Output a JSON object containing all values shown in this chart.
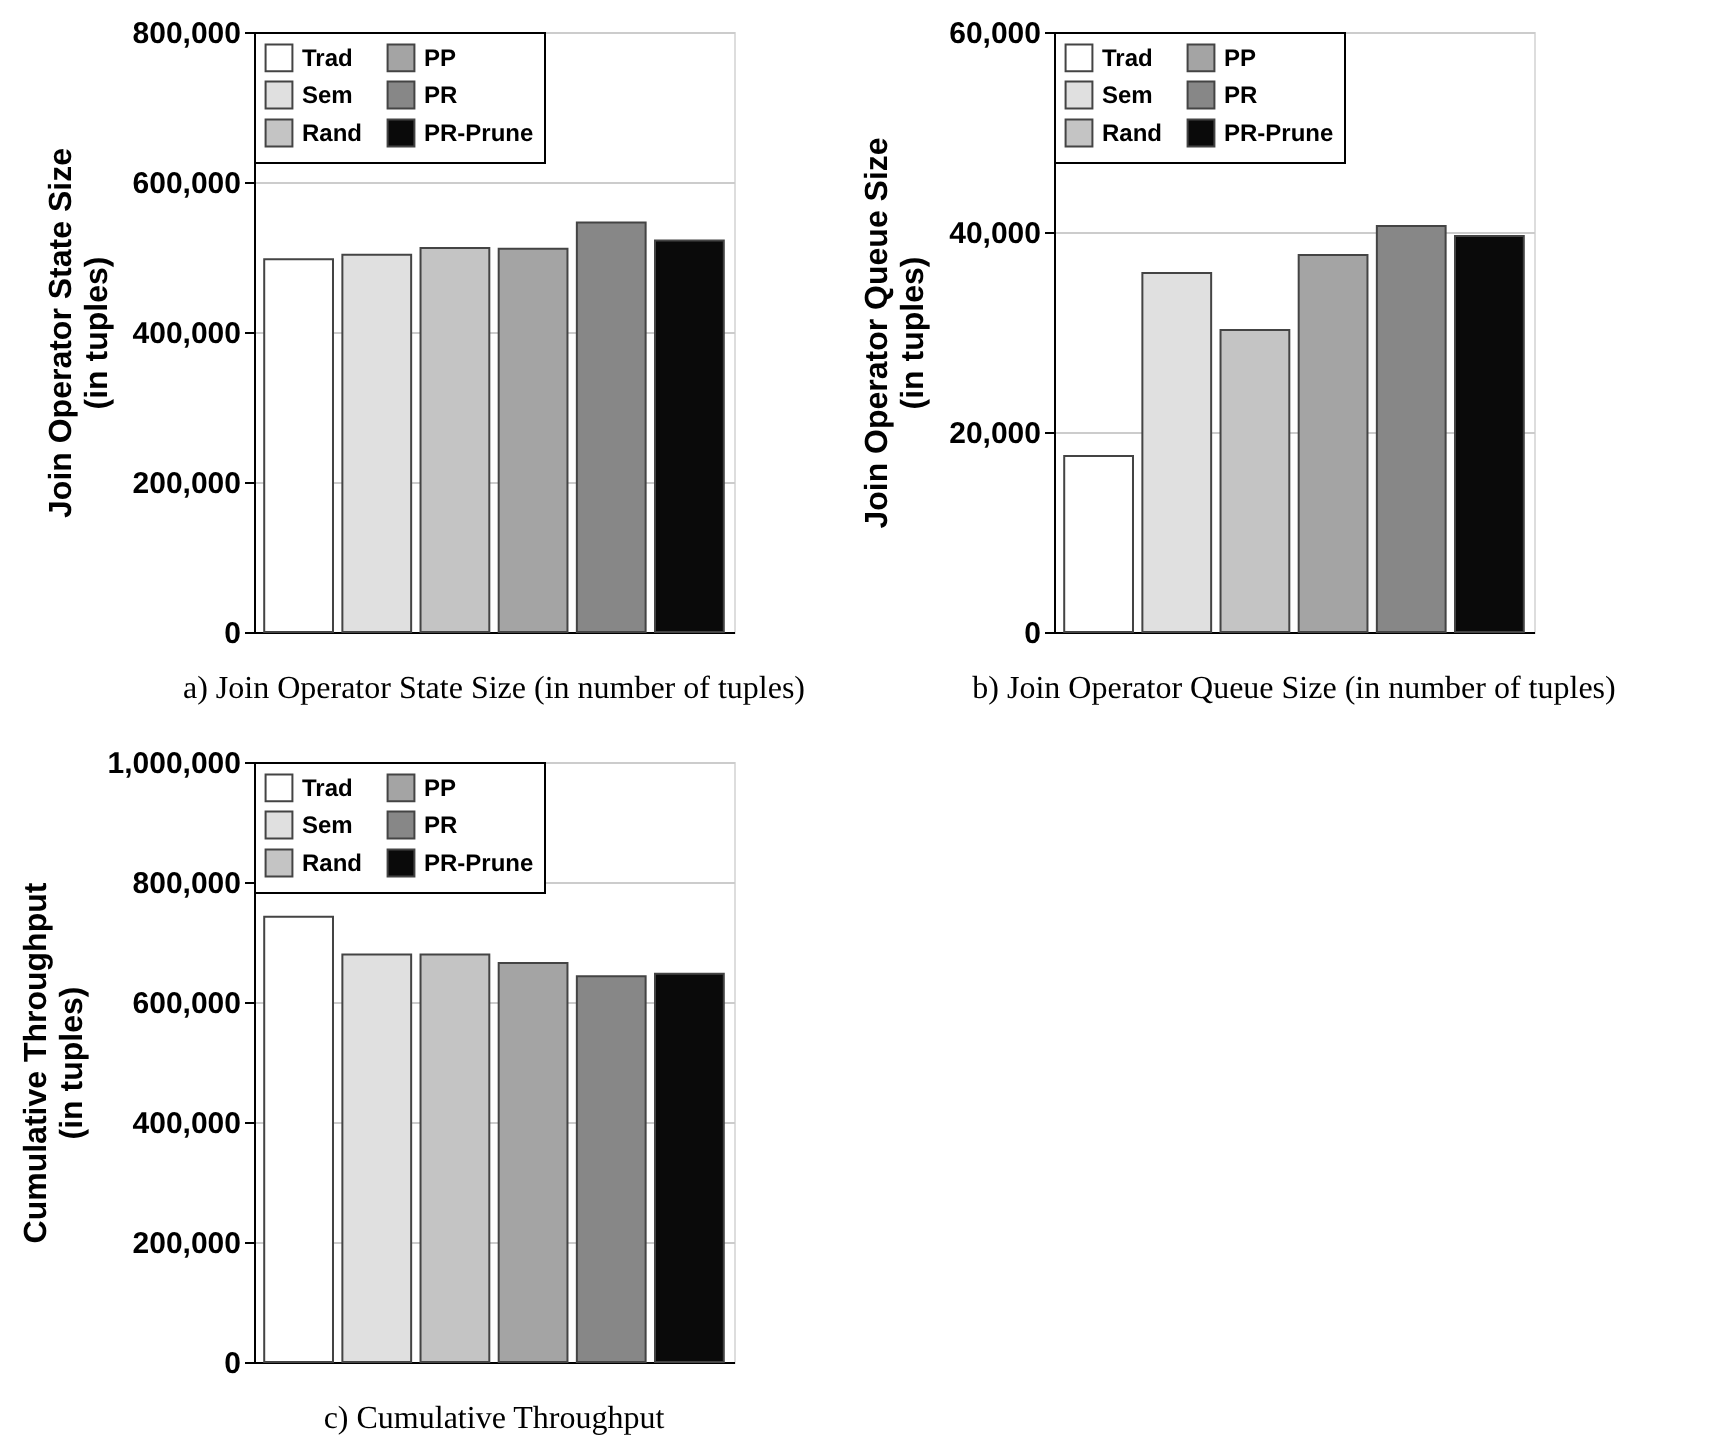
{
  "chart_data": [
    {
      "type": "bar",
      "title": "a) Join Operator State Size (in number of tuples)",
      "ylabel": "Join Operator State Size\n(in tuples)",
      "categories": [
        null
      ],
      "ylim": [
        0,
        800000
      ],
      "yticks": [
        0,
        {
          "value": 200000,
          "label": "200,000"
        },
        {
          "value": 400000,
          "label": "400,000"
        },
        {
          "value": 600000,
          "label": "600,000"
        },
        {
          "value": 800000,
          "label": "800,000"
        }
      ],
      "grid": "y",
      "legend": "top left",
      "series": [
        {
          "name": "Trad",
          "color": "#ffffff",
          "values": [
            497000
          ]
        },
        {
          "name": "Sem",
          "color": "#e0e0e0",
          "values": [
            503000
          ]
        },
        {
          "name": "Rand",
          "color": "#c4c4c4",
          "values": [
            512000
          ]
        },
        {
          "name": "PP",
          "color": "#a4a4a4",
          "values": [
            511000
          ]
        },
        {
          "name": "PR",
          "color": "#878787",
          "values": [
            546000
          ]
        },
        {
          "name": "PR-Prune",
          "color": "#0a0a0a",
          "values": [
            522000
          ]
        }
      ]
    },
    {
      "type": "bar",
      "title": "b) Join Operator Queue Size (in number of tuples)",
      "ylabel": "Join Operator Queue Size\n(in tuples)",
      "categories": [
        null
      ],
      "ylim": [
        0,
        60000
      ],
      "yticks": [
        0,
        {
          "value": 20000,
          "label": "20,000"
        },
        {
          "value": 40000,
          "label": "40,000"
        },
        {
          "value": 60000,
          "label": "60,000"
        }
      ],
      "grid": "y",
      "legend": "top left",
      "series": [
        {
          "name": "Trad",
          "color": "#ffffff",
          "values": [
            17600
          ]
        },
        {
          "name": "Sem",
          "color": "#e0e0e0",
          "values": [
            35900
          ]
        },
        {
          "name": "Rand",
          "color": "#c4c4c4",
          "values": [
            30200
          ]
        },
        {
          "name": "PP",
          "color": "#a4a4a4",
          "values": [
            37700
          ]
        },
        {
          "name": "PR",
          "color": "#878787",
          "values": [
            40600
          ]
        },
        {
          "name": "PR-Prune",
          "color": "#0a0a0a",
          "values": [
            39600
          ]
        }
      ]
    },
    {
      "type": "bar",
      "title": "c) Cumulative Throughput",
      "ylabel": "Cumulative Throughput\n(in tuples)",
      "categories": [
        null
      ],
      "ylim": [
        0,
        1000000
      ],
      "yticks": [
        0,
        {
          "value": 200000,
          "label": "200,000"
        },
        {
          "value": 400000,
          "label": "400,000"
        },
        {
          "value": 600000,
          "label": "600,000"
        },
        {
          "value": 800000,
          "label": "800,000"
        },
        {
          "value": 1000000,
          "label": "1,000,000"
        }
      ],
      "grid": "y",
      "legend": "top left",
      "series": [
        {
          "name": "Trad",
          "color": "#ffffff",
          "values": [
            742000
          ]
        },
        {
          "name": "Sem",
          "color": "#e0e0e0",
          "values": [
            679000
          ]
        },
        {
          "name": "Rand",
          "color": "#c4c4c4",
          "values": [
            679000
          ]
        },
        {
          "name": "PP",
          "color": "#a4a4a4",
          "values": [
            665000
          ]
        },
        {
          "name": "PR",
          "color": "#878787",
          "values": [
            643000
          ]
        },
        {
          "name": "PR-Prune",
          "color": "#0a0a0a",
          "values": [
            647000
          ]
        }
      ]
    }
  ]
}
